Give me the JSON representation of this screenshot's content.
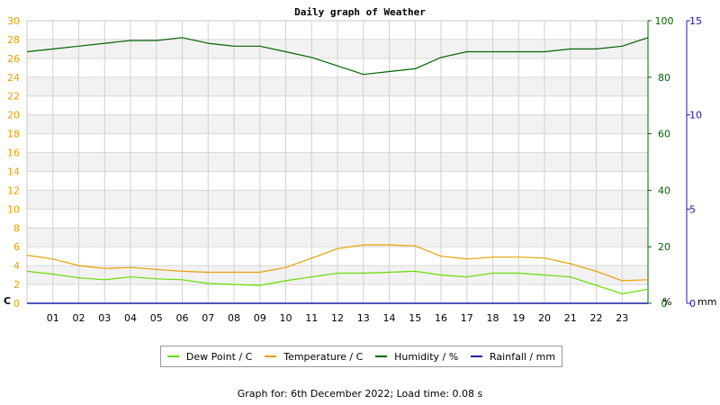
{
  "chart_data": {
    "type": "line",
    "title": "Daily graph of Weather",
    "x_ticks": [
      "01",
      "02",
      "03",
      "04",
      "05",
      "06",
      "07",
      "08",
      "09",
      "10",
      "11",
      "12",
      "13",
      "14",
      "15",
      "16",
      "17",
      "18",
      "19",
      "20",
      "21",
      "22",
      "23"
    ],
    "xlim": [
      0,
      24
    ],
    "axes": {
      "left": {
        "unit_label": "C",
        "min": 0,
        "max": 30,
        "ticks": [
          0,
          2,
          4,
          6,
          8,
          10,
          12,
          14,
          16,
          18,
          20,
          22,
          24,
          26,
          28,
          30
        ],
        "color": "#e8a000"
      },
      "right1": {
        "unit_label": "%",
        "min": 0,
        "max": 100,
        "ticks": [
          0,
          20,
          40,
          60,
          80,
          100
        ],
        "color": "#006400"
      },
      "right2": {
        "unit_label": "mm",
        "min": 0,
        "max": 15,
        "ticks": [
          0,
          5,
          10,
          15
        ],
        "color": "#1a1aa6"
      }
    },
    "series": [
      {
        "name": "Dew Point / C",
        "axis": "left",
        "color": "#66dd00",
        "x": [
          0,
          1,
          2,
          3,
          4,
          5,
          6,
          7,
          8,
          9,
          10,
          11,
          12,
          13,
          14,
          15,
          16,
          17,
          18,
          19,
          20,
          21,
          22,
          23,
          24
        ],
        "y": [
          3.4,
          3.1,
          2.7,
          2.5,
          2.8,
          2.6,
          2.5,
          2.1,
          2.0,
          1.9,
          2.4,
          2.8,
          3.2,
          3.2,
          3.3,
          3.4,
          3.0,
          2.8,
          3.2,
          3.2,
          3.0,
          2.8,
          1.9,
          1.0,
          1.5
        ]
      },
      {
        "name": "Temperature / C",
        "axis": "left",
        "color": "#e8a000",
        "x": [
          0,
          1,
          2,
          3,
          4,
          5,
          6,
          7,
          8,
          9,
          10,
          11,
          12,
          13,
          14,
          15,
          16,
          17,
          18,
          19,
          20,
          21,
          22,
          23,
          24
        ],
        "y": [
          5.1,
          4.7,
          4.0,
          3.7,
          3.8,
          3.6,
          3.4,
          3.3,
          3.3,
          3.3,
          3.8,
          4.8,
          5.8,
          6.2,
          6.2,
          6.1,
          5.0,
          4.7,
          4.9,
          4.9,
          4.8,
          4.2,
          3.4,
          2.4,
          2.5
        ]
      },
      {
        "name": "Humidity / %",
        "axis": "right1",
        "color": "#006400",
        "x": [
          0,
          1,
          2,
          3,
          4,
          5,
          6,
          7,
          8,
          9,
          10,
          11,
          12,
          13,
          14,
          15,
          16,
          17,
          18,
          19,
          20,
          21,
          22,
          23,
          24
        ],
        "y": [
          89,
          90,
          91,
          92,
          93,
          93,
          94,
          92,
          91,
          91,
          89,
          87,
          84,
          81,
          82,
          83,
          87,
          89,
          89,
          89,
          89,
          90,
          90,
          91,
          94
        ]
      },
      {
        "name": "Rainfall / mm",
        "axis": "right2",
        "color": "#1a1aa6",
        "x": [
          0,
          24
        ],
        "y": [
          0,
          0
        ]
      }
    ],
    "legend": [
      "Dew Point / C",
      "Temperature / C",
      "Humidity / %",
      "Rainfall / mm"
    ],
    "grid": true,
    "legend_position": "bottom"
  },
  "footer": "Graph for: 6th December 2022; Load time: 0.08 s"
}
